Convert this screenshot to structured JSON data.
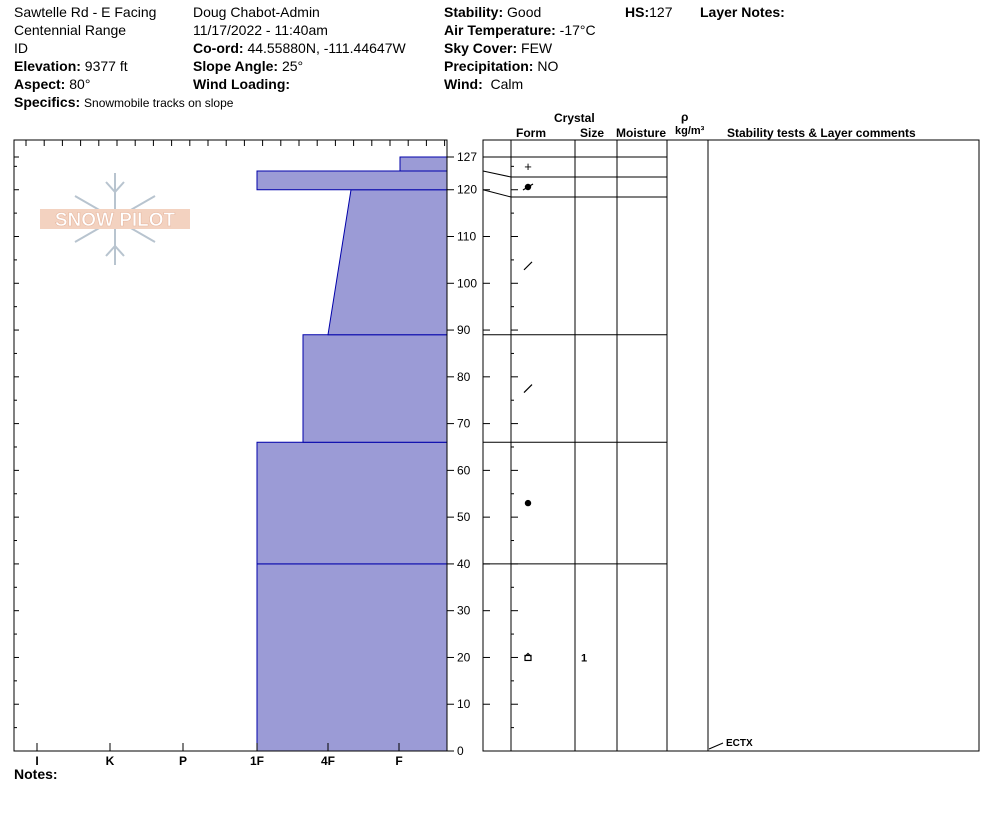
{
  "header": {
    "location": "Sawtelle Rd - E Facing",
    "range": "Centennial Range",
    "state": "ID",
    "elevation_label": "Elevation:",
    "elevation_value": "9377 ft",
    "aspect_label": "Aspect:",
    "aspect_value": "80°",
    "specifics_label": "Specifics:",
    "specifics_value": "Snowmobile tracks on slope",
    "observer": "Doug Chabot-Admin",
    "datetime": "11/17/2022 - 11:40am",
    "coord_label": "Co-ord:",
    "coord_value": "44.55880N, -111.44647W",
    "slope_label": "Slope Angle:",
    "slope_value": "25°",
    "wind_loading_label": "Wind Loading:",
    "stability_label": "Stability:",
    "stability_value": "Good",
    "air_temp_label": "Air Temperature:",
    "air_temp_value": "-17°C",
    "sky_label": "Sky Cover:",
    "sky_value": "FEW",
    "precip_label": "Precipitation:",
    "precip_value": "NO",
    "wind_label": "Wind:",
    "wind_value": "Calm",
    "hs_label": "HS:",
    "hs_value": "127",
    "layer_notes_label": "Layer Notes:"
  },
  "logo_text": "SNOW PILOT",
  "table_headers": {
    "crystal": "Crystal",
    "form": "Form",
    "size": "Size",
    "moisture": "Moisture",
    "rho": "ρ",
    "density_unit": "kg/m³",
    "comments": "Stability tests & Layer comments"
  },
  "footer": {
    "notes_label": "Notes:"
  },
  "colors": {
    "fill": "#9b9bd6",
    "edge": "#0000aa"
  },
  "chart_data": {
    "type": "bar",
    "title": "",
    "hardness_categories": [
      "I",
      "K",
      "P",
      "1F",
      "4F",
      "F"
    ],
    "height_axis": {
      "min": 0,
      "max": 127,
      "ticks": [
        0,
        10,
        20,
        30,
        40,
        50,
        60,
        70,
        80,
        90,
        100,
        110,
        120,
        127
      ]
    },
    "hardness_profile": [
      {
        "bottom": 0,
        "top": 40,
        "hardness": "1F"
      },
      {
        "bottom": 40,
        "top": 66,
        "hardness": "1F"
      },
      {
        "bottom": 66,
        "top": 89,
        "hardness_bottom": "4F-",
        "hardness_top": "4F-"
      },
      {
        "bottom": 89,
        "top": 120,
        "hardness_bottom": "4F",
        "hardness_top": "4F+"
      },
      {
        "bottom": 120,
        "top": 124,
        "hardness": "1F"
      },
      {
        "bottom": 124,
        "top": 127,
        "hardness": "F+"
      }
    ],
    "layers": [
      {
        "top": 127,
        "bottom": 124,
        "form": "+",
        "size": ""
      },
      {
        "top": 124,
        "bottom": 120,
        "form": "MFcr",
        "size": ""
      },
      {
        "top": 120,
        "bottom": 89,
        "form": "/",
        "size": ""
      },
      {
        "top": 89,
        "bottom": 66,
        "form": "/",
        "size": ""
      },
      {
        "top": 66,
        "bottom": 40,
        "form": "●",
        "size": ""
      },
      {
        "top": 40,
        "bottom": 0,
        "form": "FC",
        "size": "1"
      }
    ],
    "stability_tests": [
      {
        "height": 0,
        "label": "ECTX"
      }
    ]
  }
}
